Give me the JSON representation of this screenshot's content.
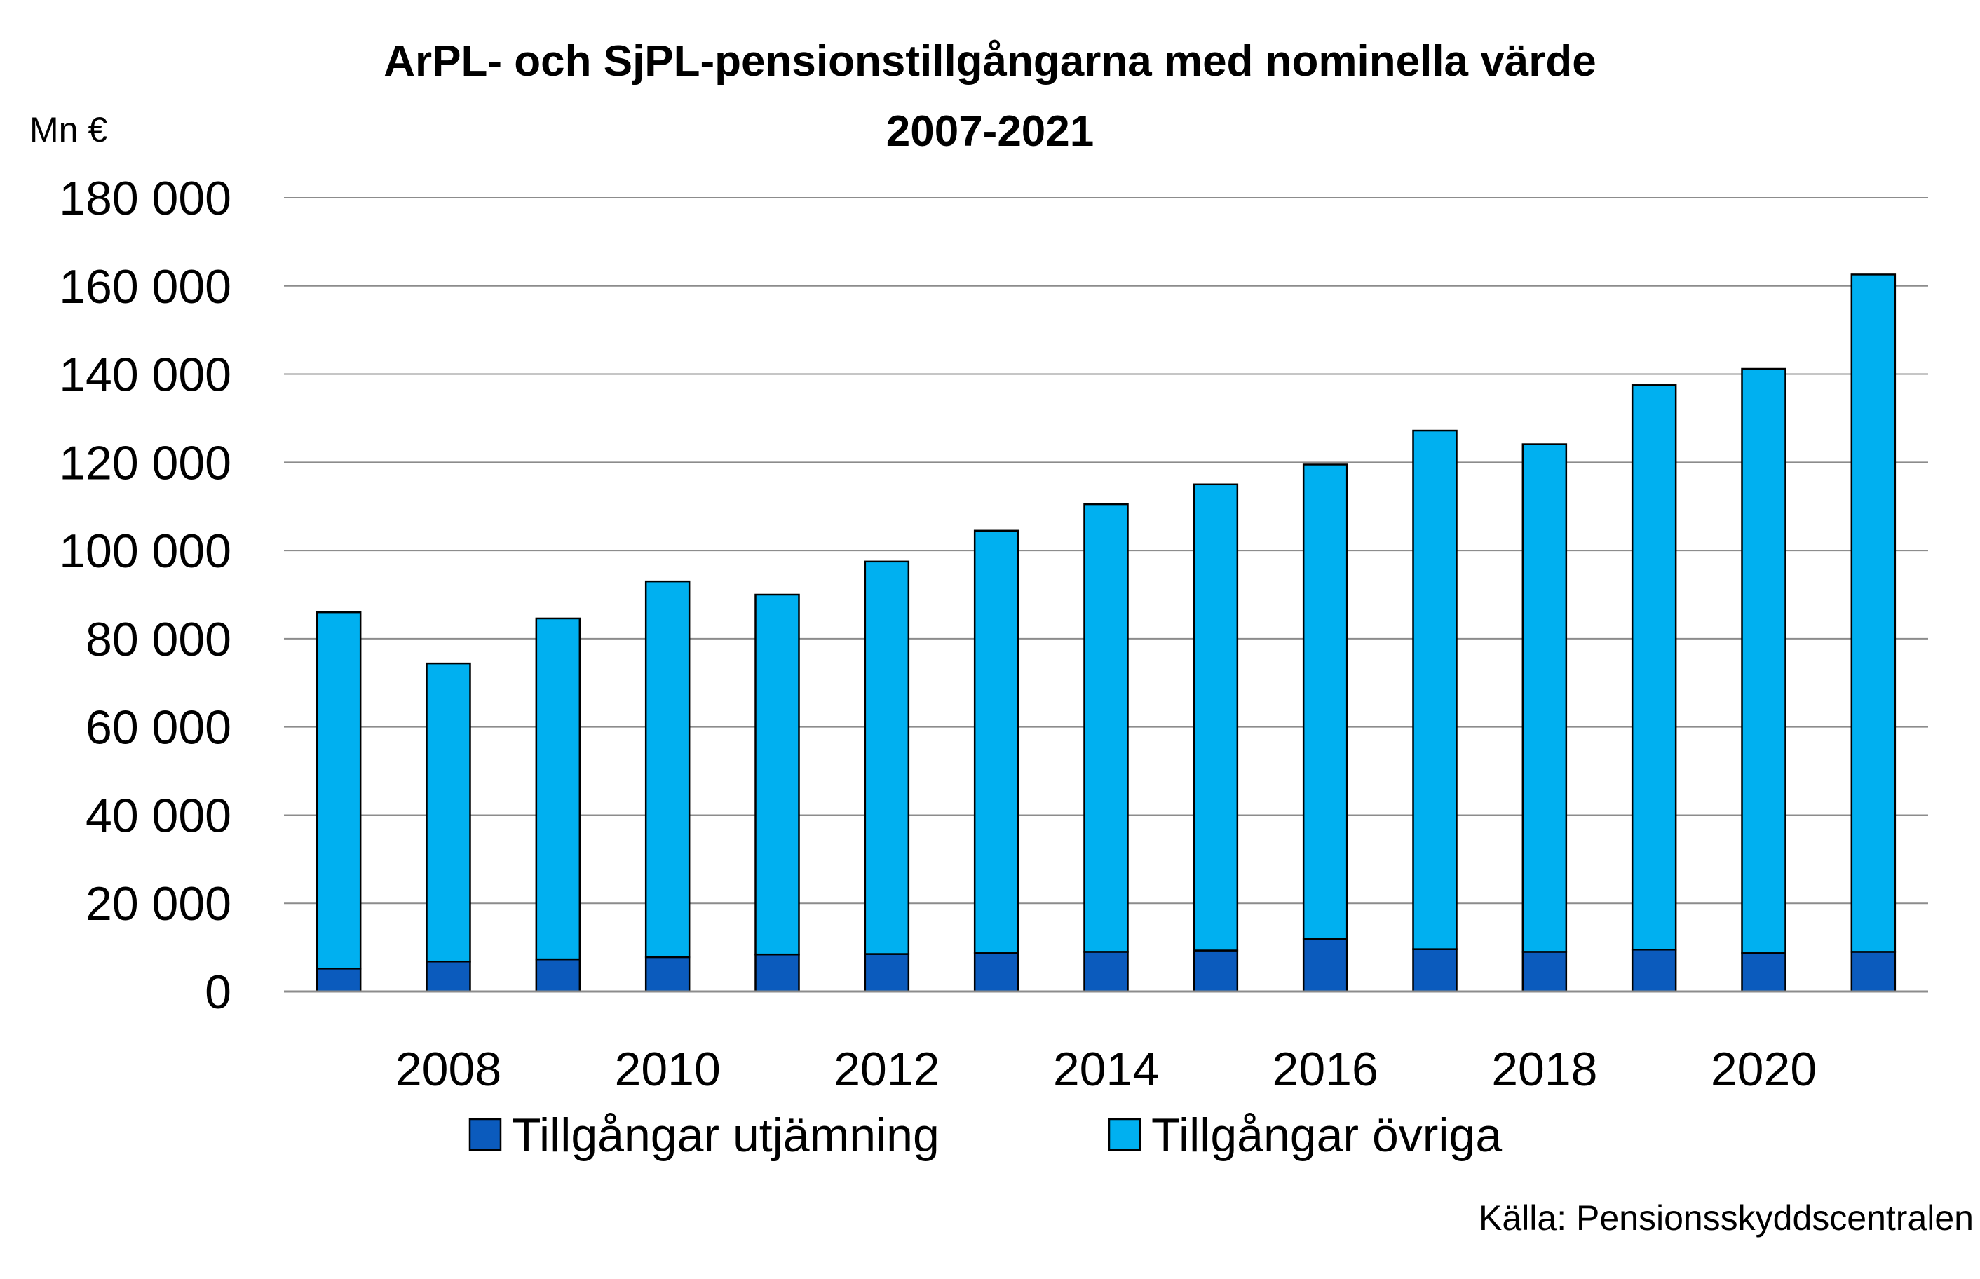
{
  "chart_data": {
    "type": "bar",
    "stacked": true,
    "title": "ArPL- och SjPL-pensionstillgångarna med nominella värde",
    "subtitle": "2007-2021",
    "ylabel": "Mn €",
    "ylim": [
      0,
      180000
    ],
    "yticks": [
      0,
      20000,
      40000,
      60000,
      80000,
      100000,
      120000,
      140000,
      160000,
      180000
    ],
    "ytick_labels": [
      "0",
      "20 000",
      "40 000",
      "60 000",
      "80 000",
      "100 000",
      "120 000",
      "140 000",
      "160 000",
      "180 000"
    ],
    "categories": [
      2007,
      2008,
      2009,
      2010,
      2011,
      2012,
      2013,
      2014,
      2015,
      2016,
      2017,
      2018,
      2019,
      2020,
      2021
    ],
    "xtick_labels": [
      "2008",
      "2010",
      "2012",
      "2014",
      "2016",
      "2018",
      "2020"
    ],
    "series": [
      {
        "name": "Tillgångar utjämning",
        "color": "#0b5bbd",
        "values": [
          5200,
          6800,
          7300,
          7800,
          8400,
          8500,
          8700,
          9000,
          9300,
          11900,
          9600,
          9000,
          9500,
          8700,
          9000
        ]
      },
      {
        "name": "Tillgångar övriga",
        "color": "#00b0f0",
        "values": [
          80800,
          67600,
          77300,
          85200,
          81600,
          89000,
          95800,
          101500,
          105700,
          107600,
          117600,
          115100,
          128000,
          132500,
          153600
        ]
      }
    ],
    "grid": true,
    "legend": "bottom",
    "source": "Källa: Pensionsskyddscentralen"
  }
}
